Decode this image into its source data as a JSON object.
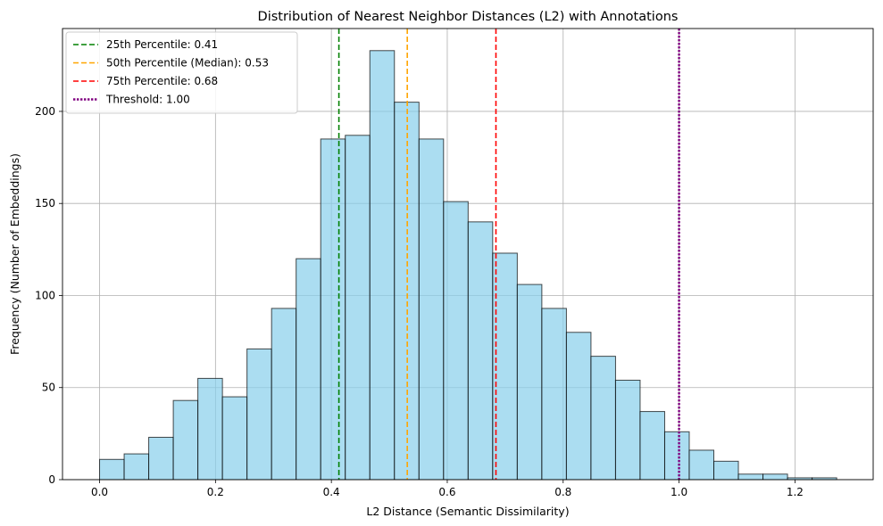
{
  "chart_data": {
    "type": "bar",
    "subtype": "histogram",
    "title": "Distribution of Nearest Neighbor Distances (L2) with Annotations",
    "xlabel": "L2 Distance (Semantic Dissimilarity)",
    "ylabel": "Frequency (Number of Embeddings)",
    "xlim": [
      -0.064,
      1.335
    ],
    "ylim": [
      0,
      245
    ],
    "xticks": [
      0.0,
      0.2,
      0.4,
      0.6,
      0.8,
      1.0,
      1.2
    ],
    "xtick_labels": [
      "0.0",
      "0.2",
      "0.4",
      "0.6",
      "0.8",
      "1.0",
      "1.2"
    ],
    "yticks": [
      0,
      50,
      100,
      150,
      200
    ],
    "ytick_labels": [
      "0",
      "50",
      "100",
      "150",
      "200"
    ],
    "grid": true,
    "legend_position": "top-left",
    "bar_color": "#87CEEB",
    "bar_edge_color": "#000000",
    "bins": {
      "start": 0.0,
      "width": 0.0424,
      "counts": [
        11,
        14,
        23,
        43,
        55,
        45,
        71,
        93,
        120,
        185,
        187,
        233,
        205,
        185,
        151,
        140,
        123,
        106,
        93,
        80,
        67,
        54,
        37,
        26,
        16,
        10,
        3,
        3,
        1,
        1
      ]
    },
    "annotations": [
      {
        "label": "25th Percentile: 0.41",
        "x": 0.413,
        "color": "#008000",
        "style": "dashed"
      },
      {
        "label": "50th Percentile (Median): 0.53",
        "x": 0.531,
        "color": "#FFA500",
        "style": "dashed"
      },
      {
        "label": "75th Percentile: 0.68",
        "x": 0.684,
        "color": "#FF0000",
        "style": "dashed"
      },
      {
        "label": "Threshold: 1.00",
        "x": 1.0,
        "color": "#800080",
        "style": "dotted"
      }
    ]
  }
}
